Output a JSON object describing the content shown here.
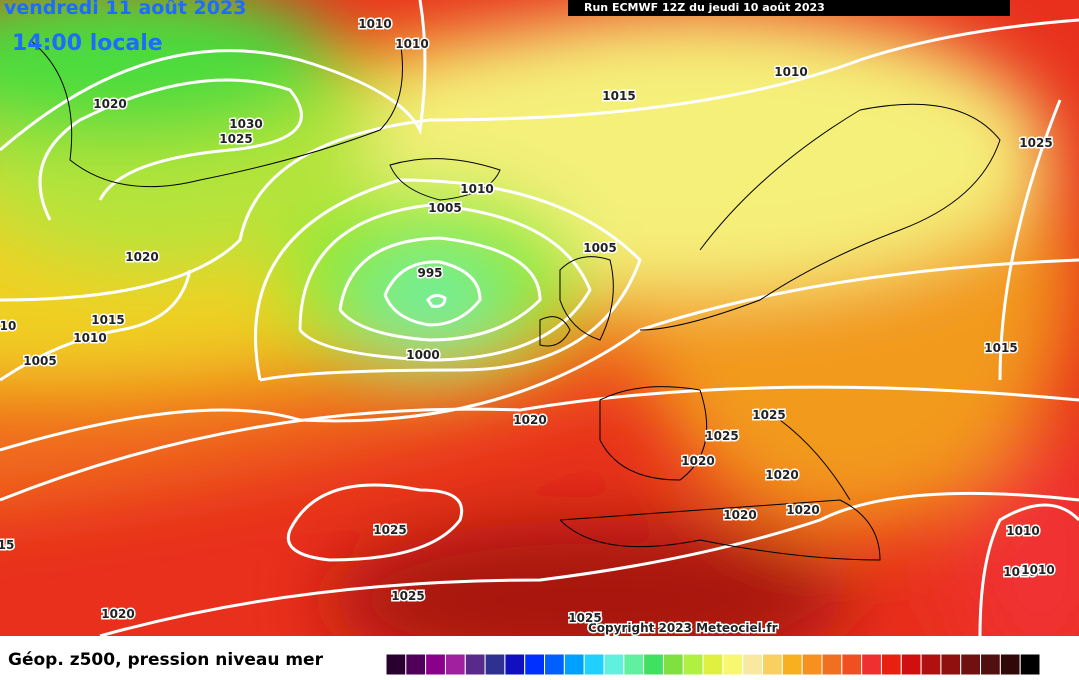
{
  "header": {
    "date": "vendredi 11 août 2023",
    "time": "14:00 locale",
    "run": "Run ECMWF 12Z du jeudi 10 août 2023"
  },
  "isobar_labels": [
    1010,
    1010,
    1020,
    1030,
    1025,
    1015,
    1010,
    1025,
    1010,
    1005,
    1020,
    1005,
    995,
    1015,
    1010,
    10,
    1005,
    1000,
    1015,
    1020,
    1025,
    1025,
    1020,
    1020,
    1020,
    1020,
    1025,
    1010,
    15,
    1010,
    1010,
    1025,
    1020,
    1025
  ],
  "copyright": "Copyright 2023 Meteociel.fr",
  "legend": {
    "title": "Géop. z500, pression niveau mer"
  }
}
